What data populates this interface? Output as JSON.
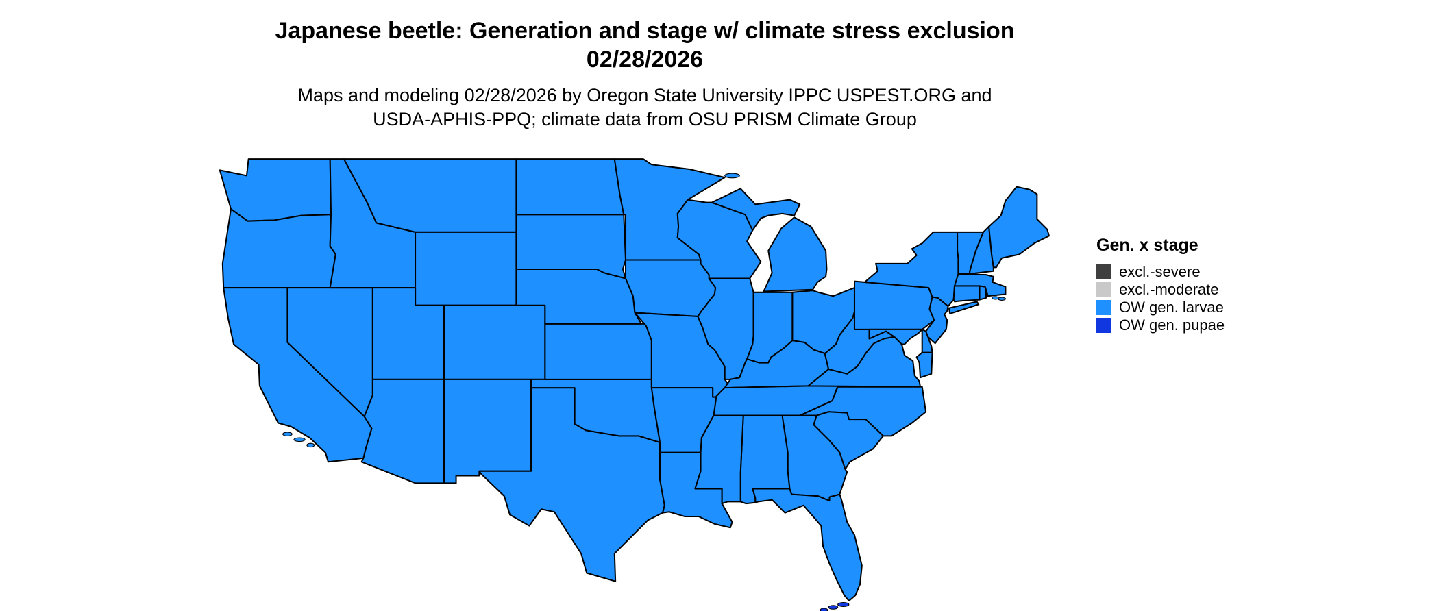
{
  "title": {
    "line1": "Japanese beetle: Generation and stage w/ climate stress exclusion",
    "line2": "02/28/2026"
  },
  "subtitle": {
    "line1": "Maps and modeling 02/28/2026 by Oregon State University IPPC USPEST.ORG and",
    "line2": "USDA-APHIS-PPQ; climate data from OSU PRISM Climate Group"
  },
  "legend": {
    "title": "Gen. x stage",
    "items": [
      {
        "label": "excl.-severe",
        "color_key": "excl_severe"
      },
      {
        "label": "excl.-moderate",
        "color_key": "excl_moderate"
      },
      {
        "label": "OW gen. larvae",
        "color_key": "ow_larvae"
      },
      {
        "label": "OW gen. pupae",
        "color_key": "ow_pupae"
      }
    ]
  },
  "colors": {
    "excl_severe": "#3F3F3F",
    "excl_moderate": "#C9C9C9",
    "ow_larvae": "#1E90FF",
    "ow_pupae": "#1037E0",
    "state_border": "#000000",
    "background": "#FFFFFF"
  },
  "map": {
    "region": "Contiguous United States",
    "dominant_category": "OW gen. larvae",
    "keys_category": "OW gen. pupae"
  }
}
